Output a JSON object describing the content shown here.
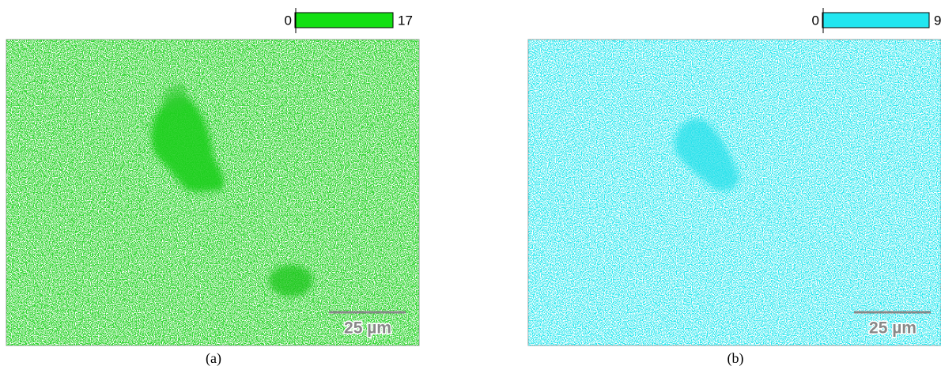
{
  "panels": [
    {
      "colorbar": {
        "min_label": "0",
        "max_label": "17"
      },
      "scale_bar": "25 µm",
      "caption": "(a)"
    },
    {
      "colorbar": {
        "min_label": "0",
        "max_label": "9"
      },
      "scale_bar": "25 µm",
      "caption": "(b)"
    }
  ]
}
